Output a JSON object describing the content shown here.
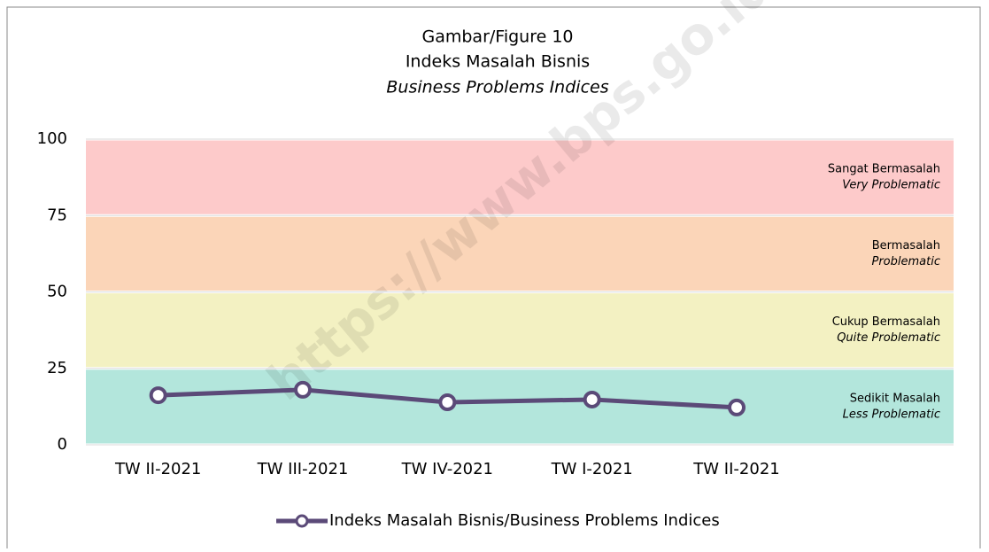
{
  "chart_data": {
    "type": "line",
    "title": [
      "Gambar/Figure 10",
      "Indeks Masalah Bisnis",
      "Business Problems Indices"
    ],
    "watermark": "https://www.bps.go.id",
    "categories": [
      "TW II-2021",
      "TW III-2021",
      "TW IV-2021",
      "TW I-2021",
      "TW II-2021"
    ],
    "series": [
      {
        "name": "Indeks Masalah Bisnis/Business Problems Indices",
        "color": "#5b4a78",
        "values": [
          16.2,
          18.0,
          13.9,
          14.8,
          12.2
        ]
      }
    ],
    "bands": [
      {
        "from": 0,
        "to": 25,
        "color": "#b3e6dc",
        "label": "Sedikit Masalah",
        "label_en": "Less Problematic"
      },
      {
        "from": 25,
        "to": 50,
        "color": "#f3f1c2",
        "label": "Cukup Bermasalah",
        "label_en": "Quite Problematic"
      },
      {
        "from": 50,
        "to": 75,
        "color": "#fbd5b8",
        "label": "Bermasalah",
        "label_en": "Problematic"
      },
      {
        "from": 75,
        "to": 100,
        "color": "#fdcaca",
        "label": "Sangat Bermasalah",
        "label_en": "Very Problematic"
      }
    ],
    "ylim": [
      0,
      100
    ],
    "yticks": [
      0,
      25,
      50,
      75,
      100
    ],
    "grid": true,
    "legend": "bottom"
  }
}
